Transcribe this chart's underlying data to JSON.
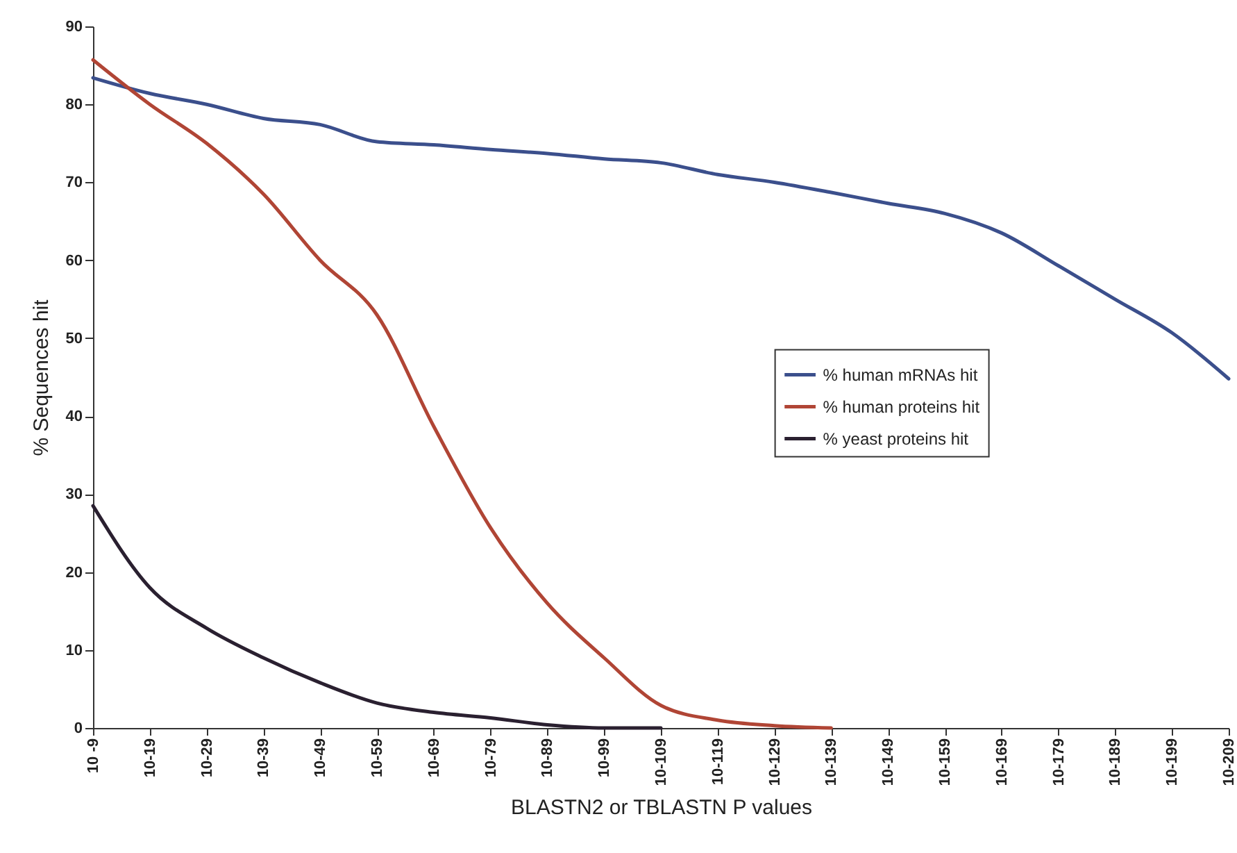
{
  "chart_data": {
    "type": "line",
    "xlabel": "BLASTN2 or TBLASTN P values",
    "ylabel": "% Sequences hit",
    "categories": [
      "10 -9",
      "10-19",
      "10-29",
      "10-39",
      "10-49",
      "10-59",
      "10-69",
      "10-79",
      "10-89",
      "10-99",
      "10-109",
      "10-119",
      "10-129",
      "10-139",
      "10-149",
      "10-159",
      "10-169",
      "10-179",
      "10-189",
      "10-199",
      "10-209"
    ],
    "series": [
      {
        "name": "% human mRNAs hit",
        "color": "#3b4f8c",
        "values": [
          83.4,
          81.4,
          80,
          78.2,
          77.4,
          75.2,
          74.8,
          74.2,
          73.7,
          73,
          72.5,
          71,
          70,
          68.7,
          67.3,
          66,
          63.5,
          59.3,
          55,
          50.7,
          44.8
        ]
      },
      {
        "name": "% human proteins hit",
        "color": "#b04535",
        "values": [
          85.7,
          80,
          75,
          68.5,
          60,
          53,
          38.7,
          25.7,
          16,
          9,
          2.9,
          1,
          0.3,
          0,
          null,
          null,
          null,
          null,
          null,
          null,
          null
        ]
      },
      {
        "name": "% yeast proteins hit",
        "color": "#2a2030",
        "values": [
          28.5,
          18,
          12.8,
          9,
          5.8,
          3.2,
          2,
          1.3,
          0.4,
          0,
          0,
          null,
          null,
          null,
          null,
          null,
          null,
          null,
          null,
          null,
          null
        ]
      }
    ],
    "ylim": [
      0,
      90
    ],
    "yticks": [
      0,
      10,
      20,
      30,
      40,
      50,
      60,
      70,
      80,
      90
    ],
    "grid": false,
    "legend": "right",
    "line_style": "solid",
    "marker": "none"
  }
}
